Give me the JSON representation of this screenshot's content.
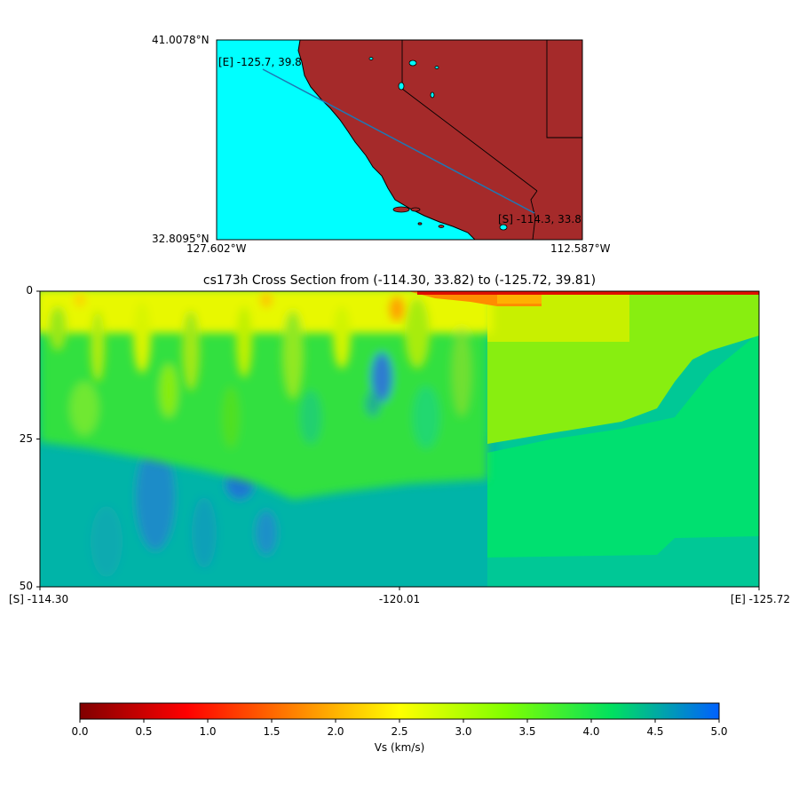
{
  "map": {
    "lat_top_label": "41.0078°N",
    "lat_bottom_label": "32.8095°N",
    "lon_left_label": "127.602°W",
    "lon_right_label": "112.587°W",
    "start_label": "[S] -114.3, 33.8",
    "end_label": "[E] -125.7, 39.8",
    "ocean_color": "#00ffff",
    "land_color": "#a52a2a",
    "line_color": "#1f77b4"
  },
  "chart_data": {
    "type": "heatmap",
    "title": "cs173h Cross Section from (-114.30, 33.82) to (-125.72, 39.81)",
    "x_tick_labels": [
      "[S] -114.30",
      "-120.01",
      "[E] -125.72"
    ],
    "x_values": [
      -114.3,
      -120.01,
      -125.72
    ],
    "y_ticks": [
      0,
      25,
      50
    ],
    "ylim": [
      0,
      50
    ],
    "y_inverted": true,
    "color_variable": "Vs (km/s)",
    "colorbar_ticks": [
      "0.0",
      "0.5",
      "1.0",
      "1.5",
      "2.0",
      "2.5",
      "3.0",
      "3.5",
      "4.0",
      "4.5",
      "5.0"
    ],
    "colorbar_range": [
      0.0,
      5.0
    ],
    "colormap": [
      "#800000",
      "#ff0000",
      "#ff8000",
      "#ffff00",
      "#80ff00",
      "#00e060",
      "#0060ff"
    ]
  }
}
